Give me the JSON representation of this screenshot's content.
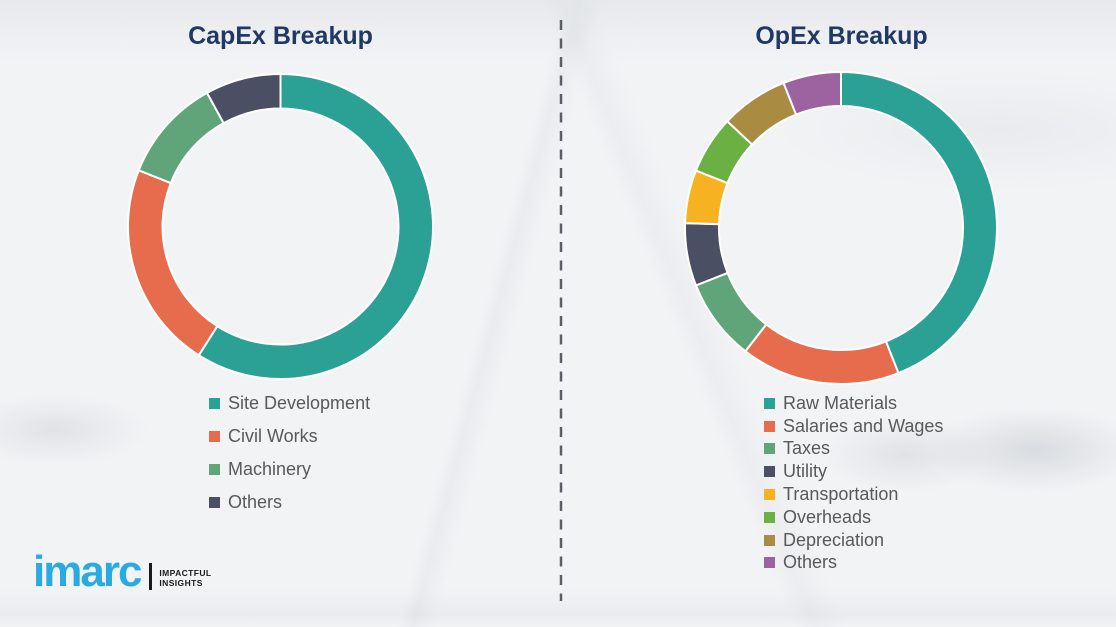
{
  "theme": {
    "background": "#f2f3f5",
    "title_color": "#1f3864",
    "legend_text_color": "#595959",
    "divider_color": "#5a5f66",
    "segment_gap_color": "#ffffff",
    "brand_color": "#29abe2"
  },
  "chart_data": [
    {
      "type": "pie",
      "subtype": "donut",
      "title": "CapEx Breakup",
      "unit": "percent-of-whole (no numeric labels shown; values estimated from arc angles)",
      "start_angle_deg": 0,
      "direction": "clockwise",
      "legend_position": "below-left",
      "segments": [
        {
          "label": "Site Development",
          "value": 59,
          "color": "#2ba195"
        },
        {
          "label": "Civil Works",
          "value": 22,
          "color": "#e66c4d"
        },
        {
          "label": "Machinery",
          "value": 11,
          "color": "#60a47a"
        },
        {
          "label": "Others",
          "value": 8,
          "color": "#4a4f63"
        }
      ]
    },
    {
      "type": "pie",
      "subtype": "donut",
      "title": "OpEx Breakup",
      "unit": "percent-of-whole (no numeric labels shown; values estimated from arc angles)",
      "start_angle_deg": 0,
      "direction": "clockwise",
      "legend_position": "below-left",
      "segments": [
        {
          "label": "Raw Materials",
          "value": 44,
          "color": "#2ba195"
        },
        {
          "label": "Salaries and Wages",
          "value": 16.5,
          "color": "#e66c4d"
        },
        {
          "label": "Taxes",
          "value": 8.5,
          "color": "#60a47a"
        },
        {
          "label": "Utility",
          "value": 6.5,
          "color": "#4a4f63"
        },
        {
          "label": "Transportation",
          "value": 5.5,
          "color": "#f6b221"
        },
        {
          "label": "Overheads",
          "value": 6,
          "color": "#6bb043"
        },
        {
          "label": "Depreciation",
          "value": 7,
          "color": "#a98b42"
        },
        {
          "label": "Others",
          "value": 6,
          "color": "#9d62a0"
        }
      ]
    }
  ],
  "divider": {
    "style": "vertical-dashed"
  },
  "logo": {
    "brand": "imarc",
    "tagline_line1": "IMPACTFUL",
    "tagline_line2": "INSIGHTS"
  }
}
